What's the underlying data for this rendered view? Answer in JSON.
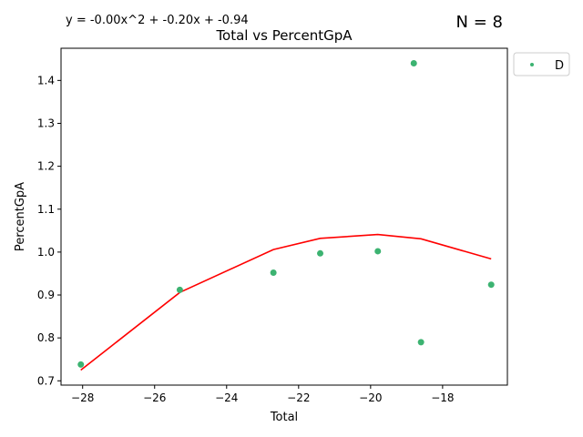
{
  "chart_data": {
    "type": "scatter",
    "title": "Total vs PercentGpA",
    "xlabel": "Total",
    "ylabel": "PercentGpA",
    "equation": "y = -0.00x^2 + -0.20x + -0.94",
    "n_label": "N = 8",
    "xlim": [
      -28.6,
      -16.2
    ],
    "ylim": [
      0.69,
      1.475
    ],
    "xticks": [
      -28,
      -26,
      -24,
      -22,
      -20,
      -18
    ],
    "yticks": [
      0.7,
      0.8,
      0.9,
      1.0,
      1.1,
      1.2,
      1.3,
      1.4
    ],
    "grid": false,
    "legend_position": "outside-top-right",
    "series": [
      {
        "name": "D",
        "color": "#3cb371",
        "points": [
          {
            "x": -28.05,
            "y": 0.738
          },
          {
            "x": -25.3,
            "y": 0.912
          },
          {
            "x": -22.7,
            "y": 0.952
          },
          {
            "x": -21.4,
            "y": 0.997
          },
          {
            "x": -19.8,
            "y": 1.002
          },
          {
            "x": -18.8,
            "y": 1.44
          },
          {
            "x": -18.6,
            "y": 0.79
          },
          {
            "x": -16.65,
            "y": 0.924
          }
        ]
      }
    ],
    "fit": {
      "color": "#ff0000",
      "points": [
        {
          "x": -28.05,
          "y": 0.725
        },
        {
          "x": -25.3,
          "y": 0.906
        },
        {
          "x": -22.7,
          "y": 1.006
        },
        {
          "x": -21.4,
          "y": 1.032
        },
        {
          "x": -19.8,
          "y": 1.041
        },
        {
          "x": -18.6,
          "y": 1.031
        },
        {
          "x": -16.65,
          "y": 0.984
        }
      ]
    }
  }
}
